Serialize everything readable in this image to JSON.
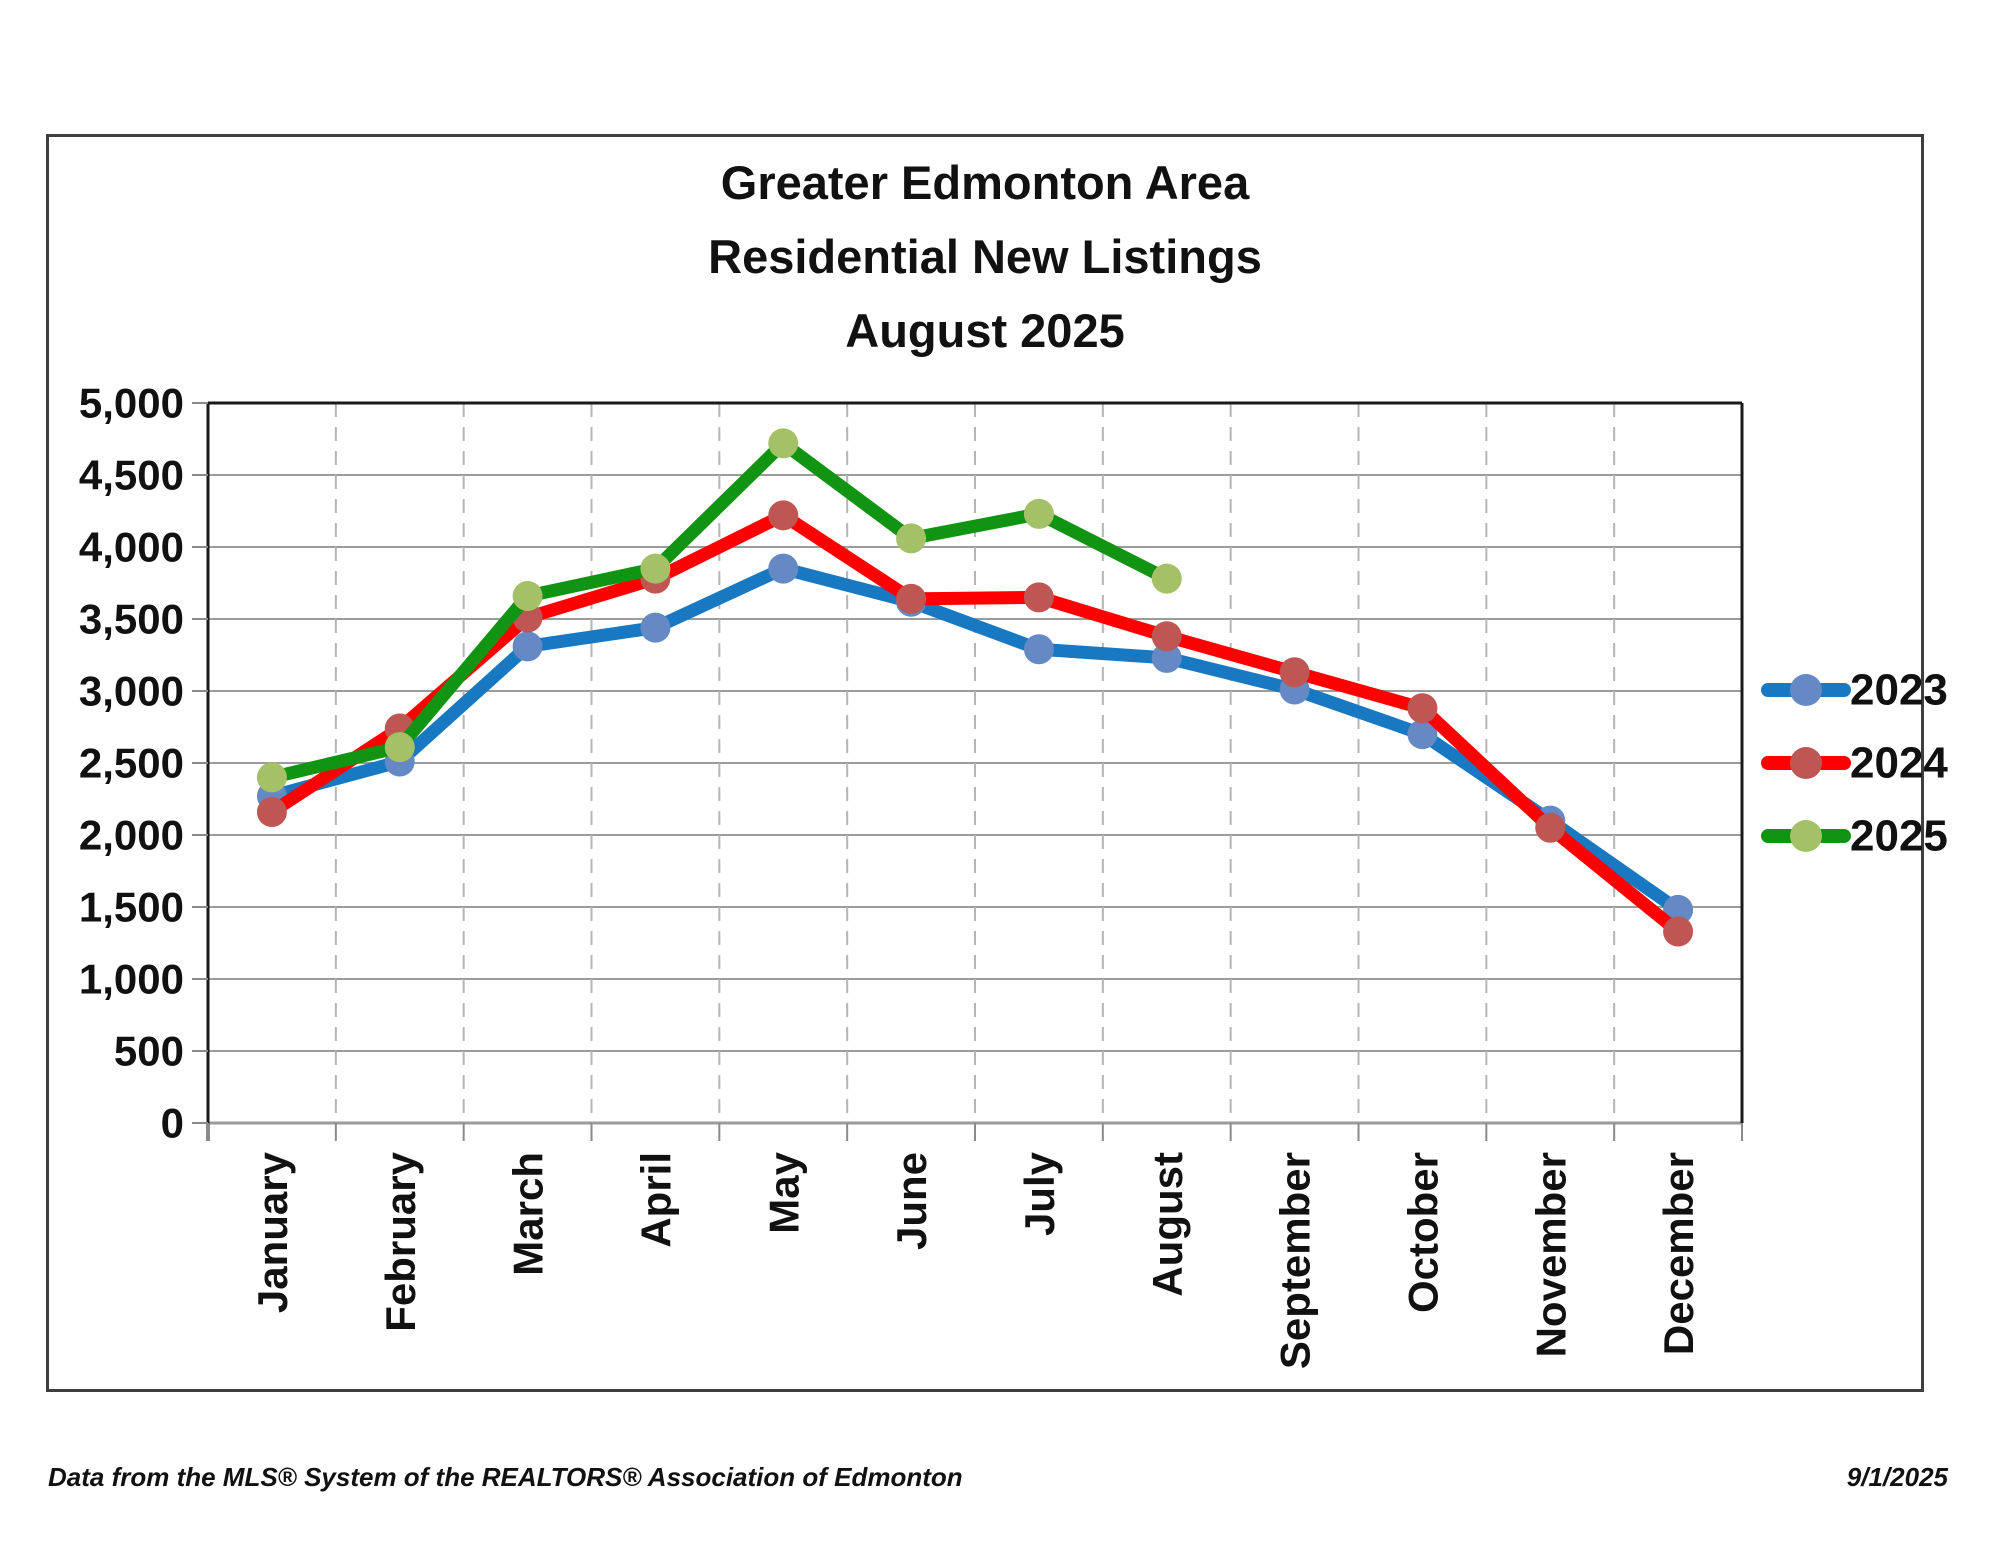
{
  "title": {
    "line1": "Greater Edmonton Area",
    "line2": "Residential New Listings",
    "line3": "August 2025"
  },
  "footer": {
    "left": "Data from the MLS® System of the REALTORS® Association of Edmonton",
    "right": "9/1/2025"
  },
  "chart_data": {
    "type": "line",
    "title": "Greater Edmonton Area Residential New Listings August 2025",
    "categories": [
      "January",
      "February",
      "March",
      "April",
      "May",
      "June",
      "July",
      "August",
      "September",
      "October",
      "November",
      "December"
    ],
    "series": [
      {
        "name": "2023",
        "line_color": "#1878C2",
        "marker_color": "#6589C4",
        "values": [
          2270,
          2510,
          3310,
          3440,
          3850,
          3620,
          3290,
          3230,
          3010,
          2700,
          2100,
          1480
        ]
      },
      {
        "name": "2024",
        "line_color": "#FF0000",
        "marker_color": "#BE5654",
        "values": [
          2160,
          2740,
          3510,
          3780,
          4220,
          3640,
          3650,
          3380,
          3130,
          2880,
          2050,
          1330
        ]
      },
      {
        "name": "2025",
        "line_color": "#119412",
        "marker_color": "#A4C167",
        "values": [
          2400,
          2610,
          3660,
          3850,
          4720,
          4060,
          4230,
          3780
        ]
      }
    ],
    "ylim": [
      0,
      5000
    ],
    "ytick_step": 500,
    "ytick_labels": [
      "0",
      "500",
      "1,000",
      "1,500",
      "2,000",
      "2,500",
      "3,000",
      "3,500",
      "4,000",
      "4,500",
      "5,000"
    ],
    "legend_position": "right",
    "legend_entries": [
      "2023",
      "2024",
      "2025"
    ],
    "grid": {
      "horizontal_solid": true,
      "vertical_dashed": true
    },
    "colors": {
      "grid_solid": "#9b9b9b",
      "grid_dashed": "#b5b5b5",
      "axis": "#1a1a1a",
      "tick": "#8a8a8a",
      "text": "#111111"
    }
  }
}
